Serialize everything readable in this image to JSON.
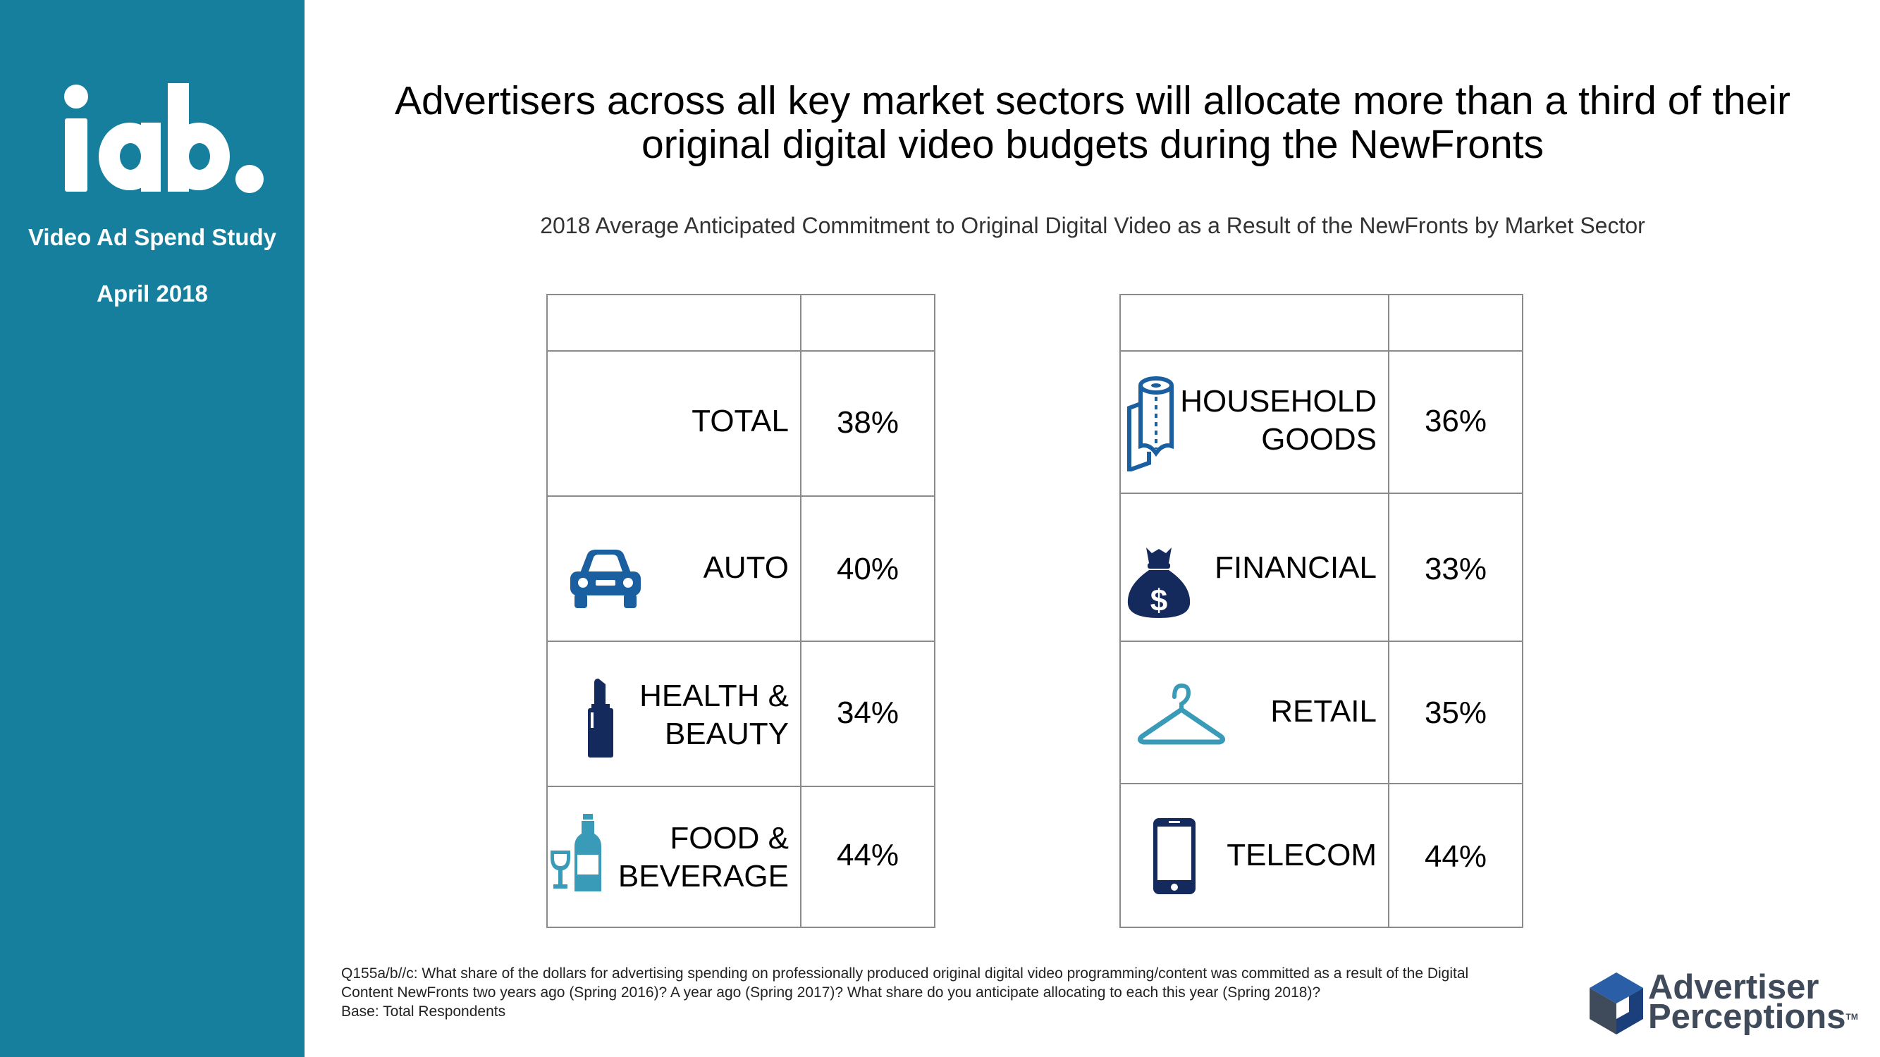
{
  "brand": {
    "logo_text": "iab.",
    "study": "Video Ad Spend Study",
    "date": "April 2018"
  },
  "title": "Advertisers across all key market sectors will allocate more than a third of their original digital video budgets during the NewFronts",
  "subtitle": "2018 Average Anticipated Commitment to Original Digital Video as a Result of the NewFronts by Market Sector",
  "left_table": [
    {
      "line1": "TOTAL",
      "line2": "",
      "value": "38%",
      "icon": "none"
    },
    {
      "line1": "AUTO",
      "line2": "",
      "value": "40%",
      "icon": "car-icon"
    },
    {
      "line1": "HEALTH &",
      "line2": "BEAUTY",
      "value": "34%",
      "icon": "lipstick-icon"
    },
    {
      "line1": "FOOD &",
      "line2": "BEVERAGE",
      "value": "44%",
      "icon": "wine-bottle-icon"
    }
  ],
  "right_table": [
    {
      "line1": "HOUSEHOLD",
      "line2": "GOODS",
      "value": "36%",
      "icon": "paper-towel-icon"
    },
    {
      "line1": "FINANCIAL",
      "line2": "",
      "value": "33%",
      "icon": "money-bag-icon"
    },
    {
      "line1": "RETAIL",
      "line2": "",
      "value": "35%",
      "icon": "hanger-icon"
    },
    {
      "line1": "TELECOM",
      "line2": "",
      "value": "44%",
      "icon": "smartphone-icon"
    }
  ],
  "footnote": {
    "question": "Q155a/b//c: What share of the dollars for advertising spending on professionally produced original digital video programming/content was committed as a result of the Digital Content NewFronts two years ago (Spring 2016)?  A year ago (Spring 2017)?  What share do you anticipate allocating to each this year (Spring 2018)?",
    "base": "Base:  Total Respondents"
  },
  "footer_logo": {
    "line1": "Advertiser",
    "line2": "Perceptions",
    "tm": "TM"
  },
  "colors": {
    "sidebar": "#167f9d",
    "icon_blue": "#1a5fa0",
    "icon_navy": "#152a5c",
    "icon_teal": "#3a9bb8"
  }
}
